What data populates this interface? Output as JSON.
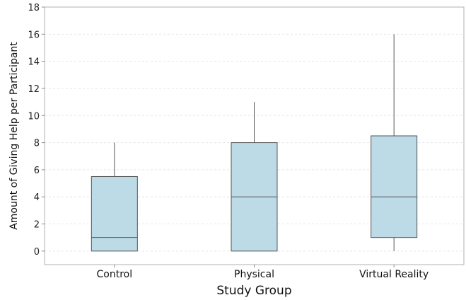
{
  "chart_data": {
    "type": "boxplot",
    "xlabel": "Study Group",
    "ylabel": "Amount of Giving Help per Participant",
    "ylim": [
      -1,
      18
    ],
    "yticks": [
      0,
      2,
      4,
      6,
      8,
      10,
      12,
      14,
      16,
      18
    ],
    "grid": true,
    "box_color": "#bcdbe6",
    "line_color": "#555555",
    "categories": [
      "Control",
      "Physical",
      "Virtual Reality"
    ],
    "boxes": [
      {
        "category": "Control",
        "min": 0,
        "q1": 0,
        "median": 1,
        "q3": 5.5,
        "max": 8
      },
      {
        "category": "Physical",
        "min": 0,
        "q1": 0,
        "median": 4,
        "q3": 8,
        "max": 11
      },
      {
        "category": "Virtual Reality",
        "min": 0,
        "q1": 1,
        "median": 4,
        "q3": 8.5,
        "max": 16
      }
    ]
  }
}
